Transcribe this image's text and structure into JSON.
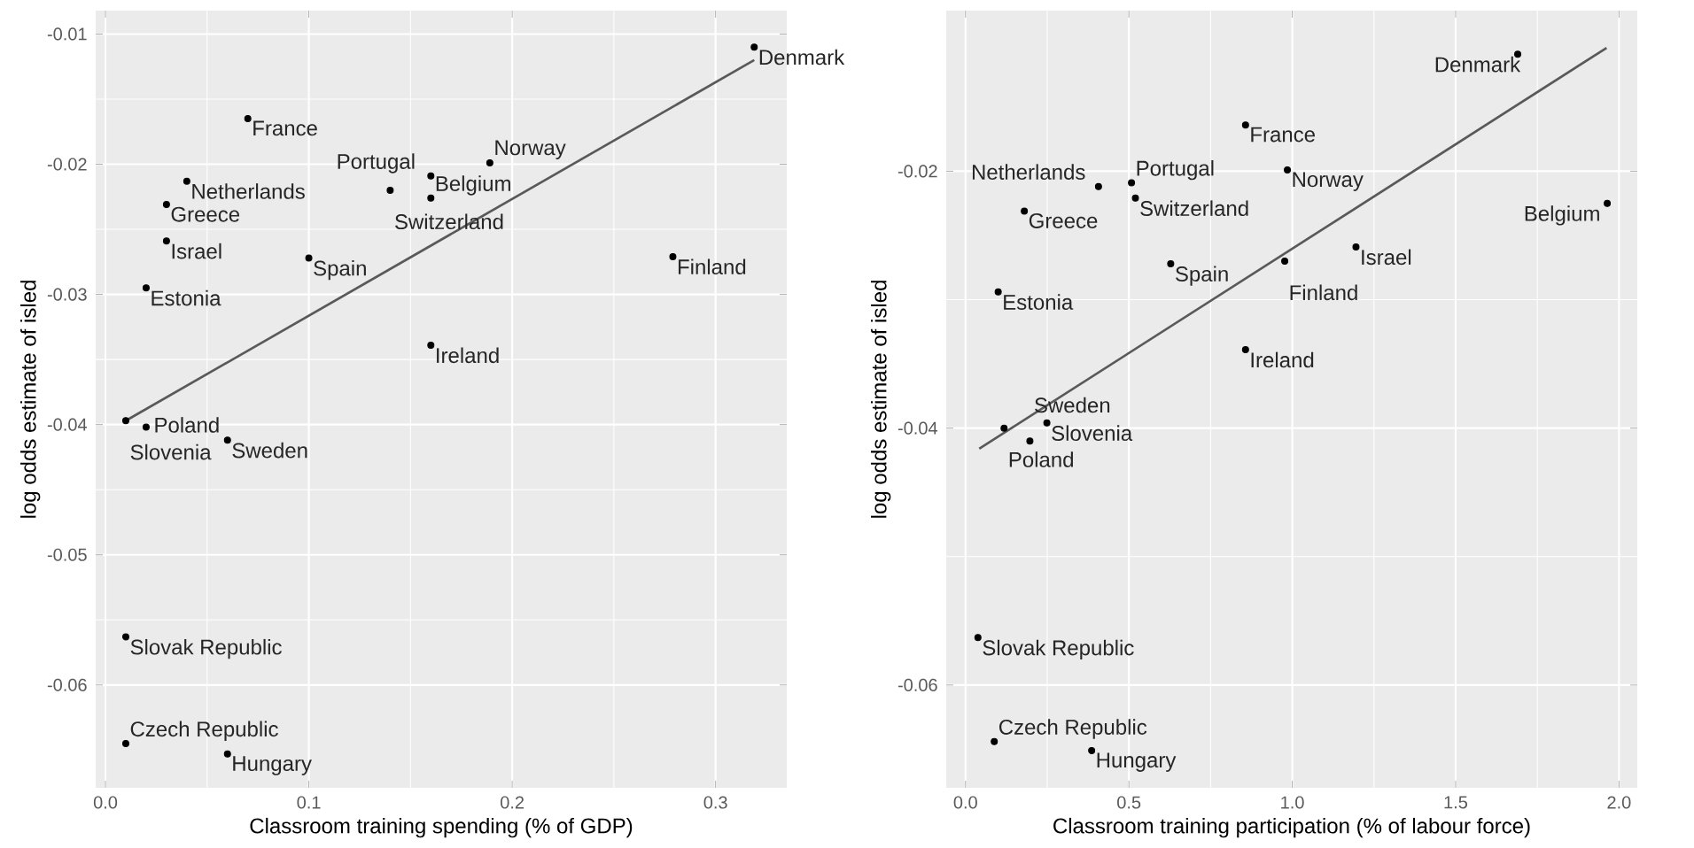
{
  "chart_data": [
    {
      "type": "scatter",
      "xlabel": "Classroom training spending (% of GDP)",
      "ylabel": "log odds estimate of isled",
      "xlim": [
        -0.0048,
        0.335
      ],
      "ylim": [
        -0.0679,
        -0.0082
      ],
      "xticks": [
        {
          "value": 0,
          "label": "0.0"
        },
        0.1,
        0.2,
        0.3
      ],
      "yticks": [
        -0.06,
        -0.05,
        -0.04,
        -0.03,
        -0.02,
        -0.01
      ],
      "grid": true,
      "series": [
        {
          "type": "scatter",
          "marker": "circle",
          "color": "#000000",
          "x": [
            0.319,
            0.07,
            0.189,
            0.16,
            0.04,
            0.14,
            0.16,
            0.03,
            0.03,
            0.1,
            0.279,
            0.02,
            0.16,
            0.01,
            0.02,
            0.06,
            0.01,
            0.01,
            0.06
          ],
          "values": [
            -0.011,
            -0.0165,
            -0.0199,
            -0.0209,
            -0.0213,
            -0.022,
            -0.0226,
            -0.0231,
            -0.0259,
            -0.0272,
            -0.0271,
            -0.0295,
            -0.0339,
            -0.0397,
            -0.0402,
            -0.0412,
            -0.0563,
            -0.0645,
            -0.0653
          ]
        },
        {
          "type": "line",
          "color": "#595959",
          "x": [
            0.01,
            0.319
          ],
          "values": [
            -0.0397,
            -0.012
          ]
        }
      ],
      "annotations": [
        {
          "text": "Denmark",
          "x": 0.319,
          "y": -0.011
        },
        {
          "text": "France",
          "x": 0.07,
          "y": -0.0165
        },
        {
          "text": "Norway",
          "x": 0.189,
          "y": -0.0199
        },
        {
          "text": "Portugal",
          "x": 0.16,
          "y": -0.0209
        },
        {
          "text": "Netherlands",
          "x": 0.04,
          "y": -0.0213
        },
        {
          "text": "Switzerland",
          "x": 0.14,
          "y": -0.022
        },
        {
          "text": "Belgium",
          "x": 0.16,
          "y": -0.0226
        },
        {
          "text": "Greece",
          "x": 0.03,
          "y": -0.0231
        },
        {
          "text": "Israel",
          "x": 0.03,
          "y": -0.0259
        },
        {
          "text": "Spain",
          "x": 0.1,
          "y": -0.0272
        },
        {
          "text": "Finland",
          "x": 0.279,
          "y": -0.0271
        },
        {
          "text": "Estonia",
          "x": 0.02,
          "y": -0.0295
        },
        {
          "text": "Ireland",
          "x": 0.16,
          "y": -0.0339
        },
        {
          "text": "Slovenia",
          "x": 0.01,
          "y": -0.0397
        },
        {
          "text": "Poland",
          "x": 0.02,
          "y": -0.0402
        },
        {
          "text": "Sweden",
          "x": 0.06,
          "y": -0.0412
        },
        {
          "text": "Slovak Republic",
          "x": 0.01,
          "y": -0.0563
        },
        {
          "text": "Czech Republic",
          "x": 0.01,
          "y": -0.0645
        },
        {
          "text": "Hungary",
          "x": 0.06,
          "y": -0.0653
        }
      ]
    },
    {
      "type": "scatter",
      "xlabel": "Classroom training participation (% of labour force)",
      "ylabel": "log odds estimate of isled",
      "xlim": [
        -0.059,
        2.056
      ],
      "ylim": [
        -0.068,
        -0.0075
      ],
      "xticks": [
        {
          "value": 0,
          "label": "0.0"
        },
        {
          "value": 0.5,
          "label": "0.5"
        },
        {
          "value": 1,
          "label": "1.0"
        },
        {
          "value": 1.5,
          "label": "1.5"
        },
        {
          "value": 2,
          "label": "2.0"
        }
      ],
      "yticks": [
        -0.06,
        -0.04,
        -0.02
      ],
      "grid": true,
      "series": [
        {
          "type": "scatter",
          "marker": "circle",
          "color": "#000000",
          "x": [
            1.69,
            0.857,
            0.985,
            0.508,
            0.407,
            0.52,
            1.964,
            0.18,
            1.195,
            0.977,
            0.628,
            0.1,
            0.857,
            0.249,
            0.118,
            0.197,
            0.038,
            0.088,
            0.386
          ],
          "values": [
            -0.0109,
            -0.0164,
            -0.0199,
            -0.0209,
            -0.0212,
            -0.0221,
            -0.0225,
            -0.0231,
            -0.0259,
            -0.027,
            -0.0272,
            -0.0294,
            -0.0339,
            -0.0396,
            -0.04,
            -0.041,
            -0.0563,
            -0.0644,
            -0.0651
          ]
        },
        {
          "type": "line",
          "color": "#595959",
          "x": [
            0.042,
            1.962
          ],
          "values": [
            -0.0416,
            -0.0104
          ]
        }
      ],
      "annotations": [
        {
          "text": "Denmark",
          "x": 1.69,
          "y": -0.0109
        },
        {
          "text": "France",
          "x": 0.857,
          "y": -0.0164
        },
        {
          "text": "Norway",
          "x": 0.985,
          "y": -0.0199
        },
        {
          "text": "Portugal",
          "x": 0.508,
          "y": -0.0209
        },
        {
          "text": "Netherlands",
          "x": 0.407,
          "y": -0.0212
        },
        {
          "text": "Switzerland",
          "x": 0.52,
          "y": -0.0221
        },
        {
          "text": "Belgium",
          "x": 1.964,
          "y": -0.0225
        },
        {
          "text": "Greece",
          "x": 0.18,
          "y": -0.0231
        },
        {
          "text": "Israel",
          "x": 1.195,
          "y": -0.0259
        },
        {
          "text": "Finland",
          "x": 0.977,
          "y": -0.027
        },
        {
          "text": "Spain",
          "x": 0.628,
          "y": -0.0272
        },
        {
          "text": "Estonia",
          "x": 0.1,
          "y": -0.0294
        },
        {
          "text": "Ireland",
          "x": 0.857,
          "y": -0.0339
        },
        {
          "text": "Slovenia",
          "x": 0.249,
          "y": -0.0396
        },
        {
          "text": "Poland",
          "x": 0.118,
          "y": -0.04
        },
        {
          "text": "Sweden",
          "x": 0.197,
          "y": -0.041
        },
        {
          "text": "Slovak Republic",
          "x": 0.038,
          "y": -0.0563
        },
        {
          "text": "Czech Republic",
          "x": 0.088,
          "y": -0.0644
        },
        {
          "text": "Hungary",
          "x": 0.386,
          "y": -0.0651
        }
      ]
    }
  ]
}
